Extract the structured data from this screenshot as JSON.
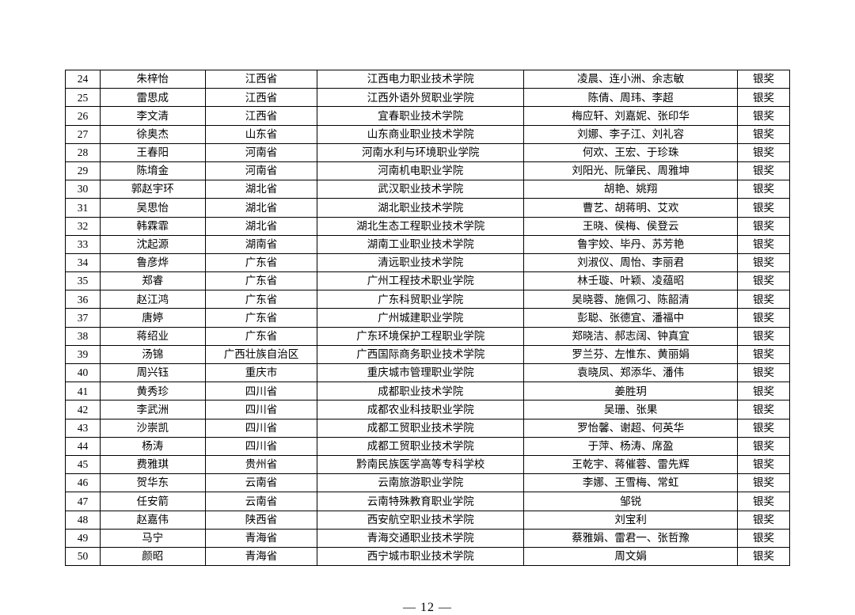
{
  "page_number": "— 12 —",
  "columns": [
    "num",
    "name",
    "province",
    "school",
    "teachers",
    "award"
  ],
  "rows": [
    [
      "24",
      "朱梓怡",
      "江西省",
      "江西电力职业技术学院",
      "凌晨、连小洲、余志敏",
      "银奖"
    ],
    [
      "25",
      "雷思成",
      "江西省",
      "江西外语外贸职业学院",
      "陈倩、周玮、李超",
      "银奖"
    ],
    [
      "26",
      "李文清",
      "江西省",
      "宜春职业技术学院",
      "梅应轩、刘嘉妮、张印华",
      "银奖"
    ],
    [
      "27",
      "徐奥杰",
      "山东省",
      "山东商业职业技术学院",
      "刘娜、李子江、刘礼容",
      "银奖"
    ],
    [
      "28",
      "王春阳",
      "河南省",
      "河南水利与环境职业学院",
      "何欢、王宏、于珍珠",
      "银奖"
    ],
    [
      "29",
      "陈堉金",
      "河南省",
      "河南机电职业学院",
      "刘阳光、阮肇民、周雅坤",
      "银奖"
    ],
    [
      "30",
      "郭赵宇环",
      "湖北省",
      "武汉职业技术学院",
      "胡艳、姚翔",
      "银奖"
    ],
    [
      "31",
      "吴思怡",
      "湖北省",
      "湖北职业技术学院",
      "曹艺、胡蒋明、艾欢",
      "银奖"
    ],
    [
      "32",
      "韩霖霏",
      "湖北省",
      "湖北生态工程职业技术学院",
      "王晓、侯梅、侯登云",
      "银奖"
    ],
    [
      "33",
      "沈起源",
      "湖南省",
      "湖南工业职业技术学院",
      "鲁宇姣、毕丹、苏芳艳",
      "银奖"
    ],
    [
      "34",
      "鲁彦烨",
      "广东省",
      "清远职业技术学院",
      "刘淑仪、周怡、李丽君",
      "银奖"
    ],
    [
      "35",
      "郑睿",
      "广东省",
      "广州工程技术职业学院",
      "林壬璇、叶颖、凌蕴昭",
      "银奖"
    ],
    [
      "36",
      "赵江鸿",
      "广东省",
      "广东科贸职业学院",
      "吴晓蓉、施佩刁、陈韶清",
      "银奖"
    ],
    [
      "37",
      "唐婷",
      "广东省",
      "广州城建职业学院",
      "彭聪、张德宜、潘福中",
      "银奖"
    ],
    [
      "38",
      "蒋绍业",
      "广东省",
      "广东环境保护工程职业学院",
      "郑晓洁、郝志阔、钟真宜",
      "银奖"
    ],
    [
      "39",
      "汤锦",
      "广西壮族自治区",
      "广西国际商务职业技术学院",
      "罗兰芬、左惟东、黄丽娟",
      "银奖"
    ],
    [
      "40",
      "周兴钰",
      "重庆市",
      "重庆城市管理职业学院",
      "袁晓凤、郑添华、潘伟",
      "银奖"
    ],
    [
      "41",
      "黄秀珍",
      "四川省",
      "成都职业技术学院",
      "姜胜玥",
      "银奖"
    ],
    [
      "42",
      "李武洲",
      "四川省",
      "成都农业科技职业学院",
      "吴珊、张果",
      "银奖"
    ],
    [
      "43",
      "沙崇凯",
      "四川省",
      "成都工贸职业技术学院",
      "罗怡馨、谢超、何英华",
      "银奖"
    ],
    [
      "44",
      "杨涛",
      "四川省",
      "成都工贸职业技术学院",
      "于萍、杨涛、席盈",
      "银奖"
    ],
    [
      "45",
      "费雅琪",
      "贵州省",
      "黔南民族医学高等专科学校",
      "王乾宇、蒋催蓉、雷先辉",
      "银奖"
    ],
    [
      "46",
      "贺华东",
      "云南省",
      "云南旅游职业学院",
      "李娜、王雪梅、常虹",
      "银奖"
    ],
    [
      "47",
      "任安箭",
      "云南省",
      "云南特殊教育职业学院",
      "邹锐",
      "银奖"
    ],
    [
      "48",
      "赵嘉伟",
      "陕西省",
      "西安航空职业技术学院",
      "刘宝利",
      "银奖"
    ],
    [
      "49",
      "马宁",
      "青海省",
      "青海交通职业技术学院",
      "蔡雅娟、雷君一、张哲豫",
      "银奖"
    ],
    [
      "50",
      "颜昭",
      "青海省",
      "西宁城市职业技术学院",
      "周文娟",
      "银奖"
    ]
  ]
}
